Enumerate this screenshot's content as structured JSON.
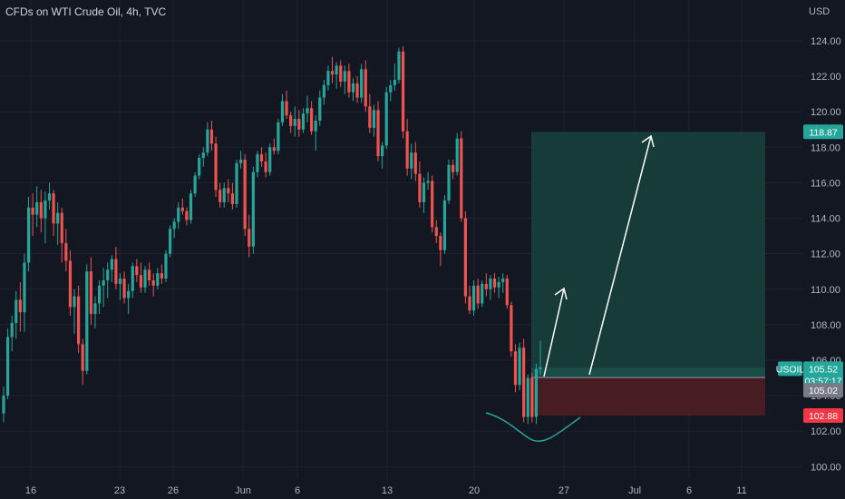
{
  "header": {
    "title": "CFDs on WTI Crude Oil, 4h, TVC"
  },
  "axis": {
    "currency": "USD"
  },
  "chart_data": {
    "type": "candlestick",
    "title": "CFDs on WTI Crude Oil, 4h, TVC",
    "ylim": [
      99.3,
      126.3
    ],
    "y_ticks": [
      "100.00",
      "102.00",
      "104.00",
      "106.00",
      "108.00",
      "110.00",
      "112.00",
      "114.00",
      "116.00",
      "118.00",
      "120.00",
      "122.00",
      "124.00"
    ],
    "x_ticks": [
      "16",
      "23",
      "26",
      "Jun",
      "6",
      "13",
      "20",
      "27",
      "Jul",
      "6",
      "11"
    ],
    "candles": [
      [
        103.0,
        104.5,
        102.5,
        104.0
      ],
      [
        104.0,
        107.8,
        103.8,
        107.3
      ],
      [
        107.3,
        108.5,
        106.5,
        108.1
      ],
      [
        108.1,
        109.9,
        107.2,
        109.4
      ],
      [
        109.4,
        110.4,
        107.6,
        108.7
      ],
      [
        108.7,
        112.0,
        107.6,
        111.5
      ],
      [
        111.5,
        115.2,
        111.0,
        114.6
      ],
      [
        114.6,
        115.4,
        113.0,
        114.2
      ],
      [
        114.2,
        115.8,
        113.5,
        114.9
      ],
      [
        114.9,
        115.6,
        113.2,
        114.0
      ],
      [
        114.0,
        115.5,
        112.6,
        115.0
      ],
      [
        115.0,
        116.0,
        114.5,
        115.4
      ],
      [
        115.4,
        115.6,
        113.0,
        113.7
      ],
      [
        113.7,
        114.9,
        112.5,
        114.3
      ],
      [
        114.3,
        114.6,
        111.5,
        112.6
      ],
      [
        112.6,
        113.4,
        111.0,
        111.6
      ],
      [
        111.6,
        112.2,
        108.5,
        109.0
      ],
      [
        109.0,
        110.0,
        107.5,
        109.6
      ],
      [
        109.6,
        110.2,
        106.4,
        106.9
      ],
      [
        106.9,
        107.2,
        104.6,
        105.4
      ],
      [
        105.4,
        111.4,
        105.2,
        111.0
      ],
      [
        111.0,
        111.8,
        108.0,
        108.6
      ],
      [
        108.6,
        109.6,
        107.8,
        109.2
      ],
      [
        109.2,
        110.5,
        108.6,
        110.2
      ],
      [
        110.2,
        111.2,
        109.0,
        110.5
      ],
      [
        110.5,
        111.5,
        109.5,
        111.1
      ],
      [
        111.1,
        111.9,
        110.4,
        111.7
      ],
      [
        111.7,
        112.4,
        110.0,
        110.3
      ],
      [
        110.3,
        110.9,
        109.4,
        110.6
      ],
      [
        110.6,
        111.0,
        109.2,
        109.5
      ],
      [
        109.5,
        110.3,
        108.6,
        109.9
      ],
      [
        109.9,
        111.5,
        109.5,
        111.3
      ],
      [
        111.3,
        111.7,
        110.4,
        110.8
      ],
      [
        110.8,
        111.5,
        109.8,
        110.1
      ],
      [
        110.1,
        111.3,
        109.8,
        111.1
      ],
      [
        111.1,
        111.5,
        110.2,
        110.5
      ],
      [
        110.5,
        110.9,
        109.6,
        110.2
      ],
      [
        110.2,
        111.2,
        110.0,
        110.9
      ],
      [
        110.9,
        111.4,
        110.3,
        110.6
      ],
      [
        110.6,
        112.2,
        110.4,
        112.0
      ],
      [
        112.0,
        113.6,
        111.8,
        113.4
      ],
      [
        113.4,
        114.0,
        112.9,
        113.8
      ],
      [
        113.8,
        114.9,
        113.4,
        114.6
      ],
      [
        114.6,
        115.1,
        114.2,
        114.4
      ],
      [
        114.4,
        114.6,
        113.6,
        113.9
      ],
      [
        113.9,
        115.6,
        113.7,
        115.4
      ],
      [
        115.4,
        116.6,
        115.2,
        116.4
      ],
      [
        116.4,
        117.6,
        116.2,
        117.4
      ],
      [
        117.4,
        118.0,
        116.9,
        117.7
      ],
      [
        117.7,
        119.4,
        117.5,
        119.0
      ],
      [
        119.0,
        119.5,
        117.8,
        118.2
      ],
      [
        118.2,
        118.6,
        115.2,
        115.6
      ],
      [
        115.6,
        116.0,
        114.6,
        114.9
      ],
      [
        114.9,
        116.0,
        114.6,
        115.7
      ],
      [
        115.7,
        116.2,
        114.9,
        115.4
      ],
      [
        115.4,
        116.0,
        114.5,
        114.8
      ],
      [
        114.8,
        117.3,
        114.6,
        117.1
      ],
      [
        117.1,
        117.8,
        116.8,
        117.3
      ],
      [
        117.3,
        117.6,
        113.0,
        113.4
      ],
      [
        113.4,
        114.2,
        111.8,
        112.4
      ],
      [
        112.4,
        116.9,
        112.0,
        116.6
      ],
      [
        116.6,
        117.8,
        116.3,
        117.6
      ],
      [
        117.6,
        118.0,
        116.9,
        117.2
      ],
      [
        117.2,
        117.7,
        116.3,
        116.6
      ],
      [
        116.6,
        118.2,
        116.4,
        118.0
      ],
      [
        118.0,
        118.5,
        117.6,
        117.8
      ],
      [
        117.8,
        119.6,
        117.6,
        119.4
      ],
      [
        119.4,
        121.0,
        119.2,
        120.6
      ],
      [
        120.6,
        121.2,
        119.6,
        119.8
      ],
      [
        119.8,
        120.0,
        118.8,
        119.2
      ],
      [
        119.2,
        120.3,
        118.6,
        119.6
      ],
      [
        119.6,
        120.1,
        118.6,
        119.0
      ],
      [
        119.0,
        120.2,
        118.8,
        119.9
      ],
      [
        119.9,
        120.9,
        119.4,
        120.2
      ],
      [
        120.2,
        120.6,
        118.7,
        118.9
      ],
      [
        118.9,
        119.8,
        117.8,
        119.5
      ],
      [
        119.5,
        121.2,
        119.2,
        120.8
      ],
      [
        120.8,
        121.8,
        120.4,
        121.5
      ],
      [
        121.5,
        122.6,
        121.2,
        122.3
      ],
      [
        122.3,
        123.1,
        121.6,
        122.1
      ],
      [
        122.1,
        122.8,
        121.3,
        122.6
      ],
      [
        122.6,
        122.9,
        121.4,
        121.7
      ],
      [
        121.7,
        122.6,
        121.0,
        122.3
      ],
      [
        122.3,
        122.7,
        120.8,
        121.1
      ],
      [
        121.1,
        121.9,
        120.6,
        121.6
      ],
      [
        121.6,
        122.0,
        120.5,
        120.8
      ],
      [
        120.8,
        122.7,
        120.5,
        122.4
      ],
      [
        122.4,
        122.9,
        120.0,
        120.3
      ],
      [
        120.3,
        121.0,
        118.8,
        119.1
      ],
      [
        119.1,
        120.4,
        118.6,
        120.1
      ],
      [
        120.1,
        120.6,
        117.2,
        117.5
      ],
      [
        117.5,
        118.3,
        116.8,
        118.1
      ],
      [
        118.1,
        121.4,
        117.9,
        121.1
      ],
      [
        121.1,
        121.8,
        120.6,
        121.5
      ],
      [
        121.5,
        122.7,
        121.2,
        121.8
      ],
      [
        121.8,
        123.6,
        121.6,
        123.4
      ],
      [
        123.4,
        123.7,
        118.5,
        118.9
      ],
      [
        118.9,
        119.6,
        116.4,
        116.8
      ],
      [
        116.8,
        118.2,
        116.2,
        117.7
      ],
      [
        117.7,
        118.3,
        116.1,
        116.5
      ],
      [
        116.5,
        117.2,
        114.6,
        114.9
      ],
      [
        114.9,
        116.3,
        114.3,
        116.0
      ],
      [
        116.0,
        116.6,
        115.6,
        116.1
      ],
      [
        116.1,
        116.4,
        113.2,
        113.5
      ],
      [
        113.5,
        113.9,
        112.6,
        113.0
      ],
      [
        113.0,
        113.2,
        111.3,
        112.2
      ],
      [
        112.2,
        115.3,
        112.0,
        115.0
      ],
      [
        115.0,
        117.3,
        114.8,
        117.0
      ],
      [
        117.0,
        117.3,
        116.2,
        116.6
      ],
      [
        116.6,
        118.8,
        116.4,
        118.5
      ],
      [
        118.5,
        118.9,
        113.8,
        114.0
      ],
      [
        114.0,
        114.4,
        109.2,
        109.6
      ],
      [
        109.6,
        110.2,
        108.6,
        108.8
      ],
      [
        108.8,
        110.5,
        108.5,
        110.2
      ],
      [
        110.2,
        110.6,
        108.9,
        109.2
      ],
      [
        109.2,
        110.5,
        109.0,
        110.3
      ],
      [
        110.3,
        110.9,
        109.6,
        110.0
      ],
      [
        110.0,
        110.8,
        109.4,
        110.6
      ],
      [
        110.6,
        110.9,
        109.8,
        110.1
      ],
      [
        110.1,
        110.7,
        109.5,
        110.4
      ],
      [
        110.4,
        110.9,
        109.8,
        110.6
      ],
      [
        110.6,
        110.8,
        108.9,
        109.1
      ],
      [
        109.1,
        109.3,
        106.2,
        106.5
      ],
      [
        106.5,
        106.9,
        104.2,
        104.6
      ],
      [
        104.6,
        107.0,
        104.3,
        106.7
      ],
      [
        106.7,
        107.2,
        102.5,
        102.8
      ],
      [
        102.8,
        105.2,
        102.4,
        105.0
      ],
      [
        105.0,
        105.3,
        102.5,
        102.8
      ],
      [
        102.8,
        105.8,
        102.4,
        105.5
      ],
      [
        105.5,
        107.1,
        105.2,
        105.6
      ]
    ],
    "current_price": "105.52",
    "countdown": "03:57:17",
    "entry_price": "105.02",
    "stop_loss": "102.88",
    "take_profit": "118.87",
    "symbol": "USOIL",
    "colors": {
      "bull": "#26a69a",
      "bear": "#ef5350",
      "profit_zone": "#163d3a",
      "loss_zone": "#4a1e24",
      "grid": "#1f2333"
    }
  }
}
